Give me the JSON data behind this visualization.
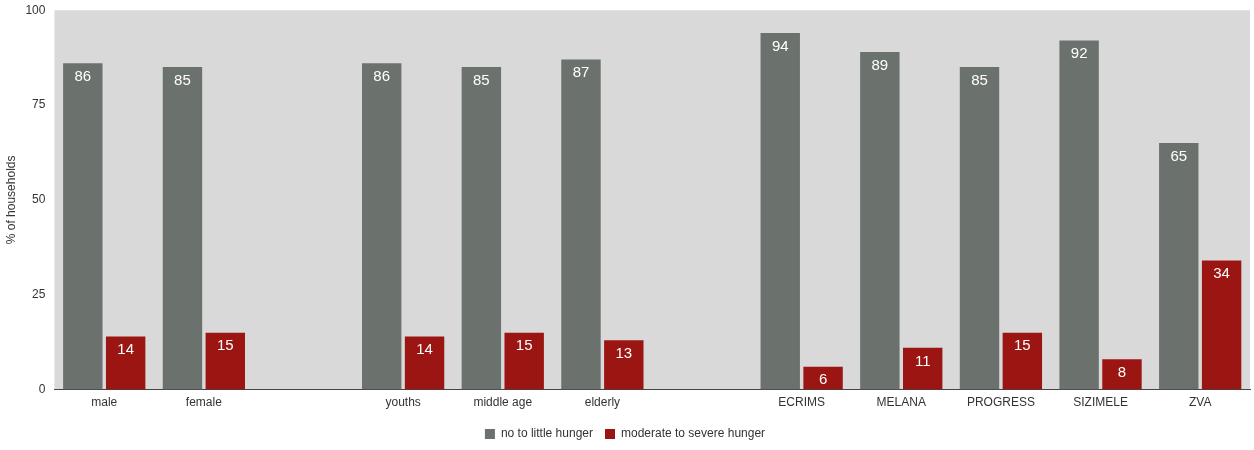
{
  "chart_data": {
    "type": "bar",
    "ylabel": "% of households",
    "categories": [
      "male",
      "female",
      null,
      "youths",
      "middle age",
      "elderly",
      null,
      "ECRIMS",
      "MELANA",
      "PROGRESS",
      "SIZIMELE",
      "ZVA"
    ],
    "series": [
      {
        "name": "no to little hunger",
        "color": "#6b726e",
        "values": [
          86,
          85,
          null,
          86,
          85,
          87,
          null,
          94,
          89,
          85,
          92,
          65
        ]
      },
      {
        "name": "moderate to severe hunger",
        "color": "#9b1612",
        "values": [
          14,
          15,
          null,
          14,
          15,
          13,
          null,
          6,
          11,
          15,
          8,
          34
        ]
      }
    ],
    "ylim": [
      0,
      100
    ],
    "yticks": [
      0,
      25,
      50,
      75,
      100
    ],
    "grid": false,
    "legend": "bottom",
    "data_labels": true
  }
}
